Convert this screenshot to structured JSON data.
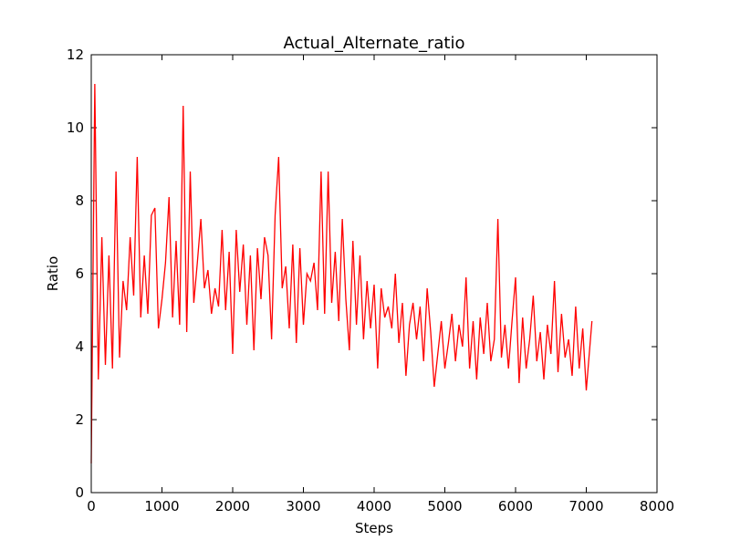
{
  "chart_data": {
    "type": "line",
    "title": "Actual_Alternate_ratio",
    "xlabel": "Steps",
    "ylabel": "Ratio",
    "color": "#ff0000",
    "x": [
      0,
      50,
      100,
      150,
      200,
      250,
      300,
      350,
      400,
      450,
      500,
      550,
      600,
      650,
      700,
      750,
      800,
      850,
      900,
      950,
      1000,
      1050,
      1100,
      1150,
      1200,
      1250,
      1300,
      1350,
      1400,
      1450,
      1500,
      1550,
      1600,
      1650,
      1700,
      1750,
      1800,
      1850,
      1900,
      1950,
      2000,
      2050,
      2100,
      2150,
      2200,
      2250,
      2300,
      2350,
      2400,
      2450,
      2500,
      2550,
      2600,
      2650,
      2700,
      2750,
      2800,
      2850,
      2900,
      2950,
      3000,
      3050,
      3100,
      3150,
      3200,
      3250,
      3300,
      3350,
      3400,
      3450,
      3500,
      3550,
      3600,
      3650,
      3700,
      3750,
      3800,
      3850,
      3900,
      3950,
      4000,
      4050,
      4100,
      4150,
      4200,
      4250,
      4300,
      4350,
      4400,
      4450,
      4500,
      4550,
      4600,
      4650,
      4700,
      4750,
      4800,
      4850,
      4900,
      4950,
      5000,
      5050,
      5100,
      5150,
      5200,
      5250,
      5300,
      5350,
      5400,
      5450,
      5500,
      5550,
      5600,
      5650,
      5700,
      5750,
      5800,
      5850,
      5900,
      5950,
      6000,
      6050,
      6100,
      6150,
      6200,
      6250,
      6300,
      6350,
      6400,
      6450,
      6500,
      6550,
      6600,
      6650,
      6700,
      6750,
      6800,
      6850,
      6900,
      6950,
      7000,
      7080
    ],
    "values": [
      0.8,
      11.2,
      3.1,
      7.0,
      3.5,
      6.5,
      3.4,
      8.8,
      3.7,
      5.8,
      5.0,
      7.0,
      5.4,
      9.2,
      4.8,
      6.5,
      4.9,
      7.6,
      7.8,
      4.5,
      5.3,
      6.3,
      8.1,
      4.8,
      6.9,
      4.6,
      10.6,
      4.4,
      8.8,
      5.2,
      6.3,
      7.5,
      5.6,
      6.1,
      4.9,
      5.6,
      5.1,
      7.2,
      5.0,
      6.6,
      3.8,
      7.2,
      5.5,
      6.8,
      4.6,
      6.5,
      3.9,
      6.7,
      5.3,
      7.0,
      6.5,
      4.2,
      7.6,
      9.2,
      5.6,
      6.2,
      4.5,
      6.8,
      4.1,
      6.7,
      4.6,
      6.0,
      5.8,
      6.3,
      5.0,
      8.8,
      4.9,
      8.8,
      5.2,
      6.6,
      4.7,
      7.5,
      5.3,
      3.9,
      6.9,
      4.6,
      6.5,
      4.2,
      5.8,
      4.5,
      5.7,
      3.4,
      5.6,
      4.8,
      5.1,
      4.5,
      6.0,
      4.1,
      5.2,
      3.2,
      4.6,
      5.2,
      4.2,
      5.1,
      3.6,
      5.6,
      4.4,
      2.9,
      3.8,
      4.7,
      3.4,
      4.1,
      4.9,
      3.6,
      4.6,
      4.0,
      5.9,
      3.4,
      4.7,
      3.1,
      4.8,
      3.8,
      5.2,
      3.6,
      4.2,
      7.5,
      3.7,
      4.6,
      3.4,
      4.7,
      5.9,
      3.0,
      4.8,
      3.4,
      4.2,
      5.4,
      3.6,
      4.4,
      3.1,
      4.6,
      3.8,
      5.8,
      3.3,
      4.9,
      3.7,
      4.2,
      3.2,
      5.1,
      3.4,
      4.5,
      2.8,
      4.7
    ],
    "xlim": [
      0,
      8000
    ],
    "xticks": [
      0,
      1000,
      2000,
      3000,
      4000,
      5000,
      6000,
      7000,
      8000
    ],
    "ylim": [
      0,
      12
    ],
    "yticks": [
      0,
      2,
      4,
      6,
      8,
      10,
      12
    ]
  }
}
